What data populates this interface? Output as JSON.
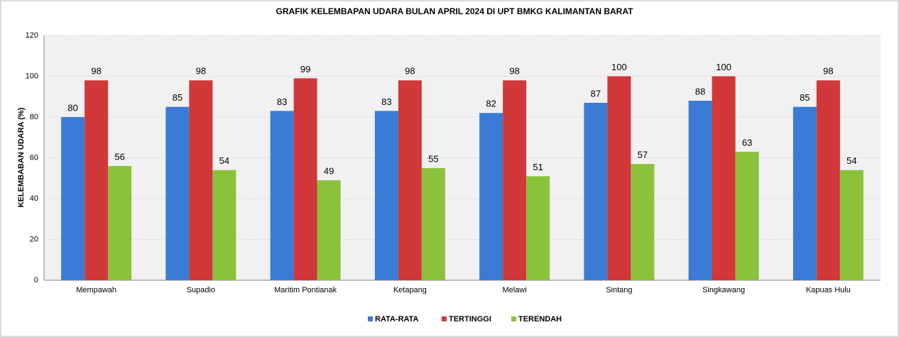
{
  "chart_data": {
    "type": "bar",
    "title": "GRAFIK KELEMBAPAN UDARA BULAN APRIL 2024 DI UPT BMKG KALIMANTAN BARAT",
    "y_label": "KELEMBABAN UDARA (%)",
    "categories": [
      "Mempawah",
      "Supadio",
      "Maritim Pontianak",
      "Ketapang",
      "Melawi",
      "Sintang",
      "Singkawang",
      "Kapuas Hulu"
    ],
    "series": [
      {
        "name": "RATA-RATA",
        "color": "#3a7bd5",
        "values": [
          80,
          85,
          83,
          83,
          82,
          87,
          88,
          85
        ]
      },
      {
        "name": "TERTINGGI",
        "color": "#d0383a",
        "values": [
          98,
          98,
          99,
          98,
          98,
          100,
          100,
          98
        ]
      },
      {
        "name": "TERENDAH",
        "color": "#8cc13c",
        "values": [
          56,
          54,
          49,
          55,
          51,
          57,
          63,
          54
        ]
      }
    ],
    "ylim": [
      0,
      120
    ],
    "yticks": [
      0,
      20,
      40,
      60,
      80,
      100,
      120
    ],
    "grid": true,
    "legend": "bottom"
  }
}
